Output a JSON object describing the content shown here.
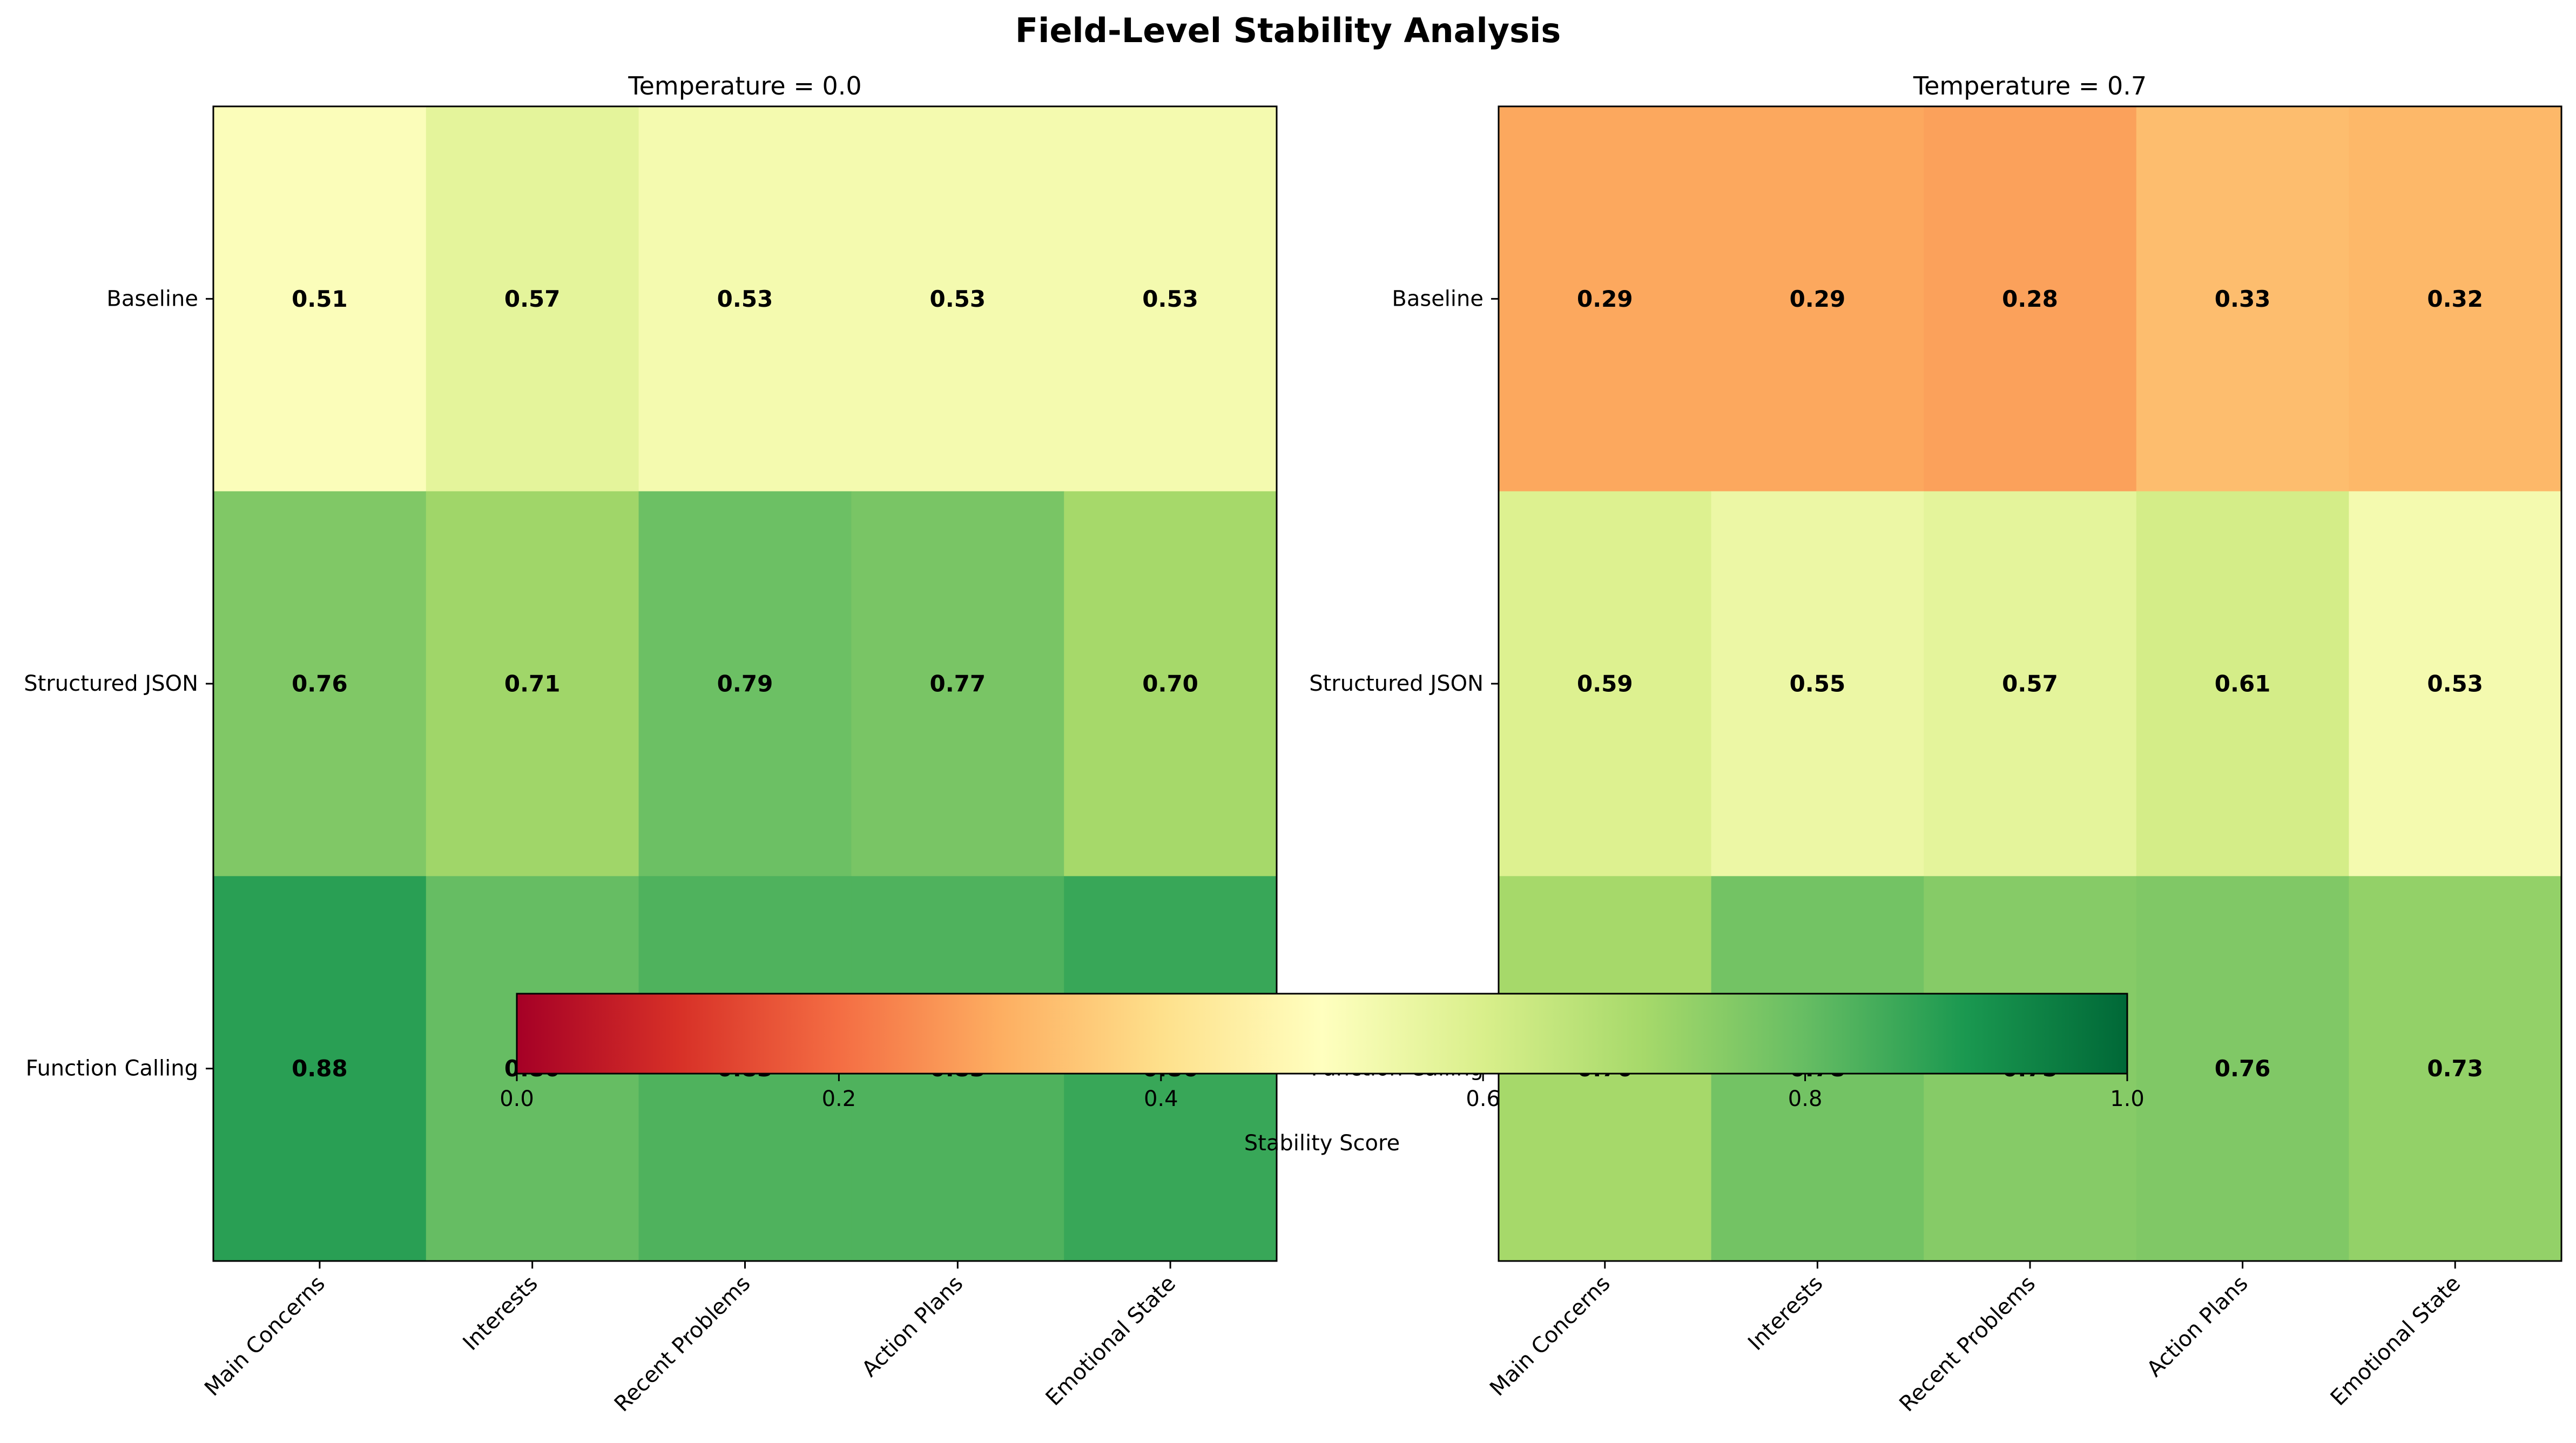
{
  "figure": {
    "title": "Field-Level Stability Analysis"
  },
  "chart_data": [
    {
      "type": "heatmap",
      "title": "Temperature = 0.0",
      "rows": [
        "Baseline",
        "Structured JSON",
        "Function Calling"
      ],
      "columns": [
        "Main Concerns",
        "Interests",
        "Recent Problems",
        "Action Plans",
        "Emotional State"
      ],
      "values": [
        [
          0.51,
          0.57,
          0.53,
          0.53,
          0.53
        ],
        [
          0.76,
          0.71,
          0.79,
          0.77,
          0.7
        ],
        [
          0.88,
          0.8,
          0.83,
          0.83,
          0.86
        ]
      ],
      "value_labels": [
        [
          "0.51",
          "0.57",
          "0.53",
          "0.53",
          "0.53"
        ],
        [
          "0.76",
          "0.71",
          "0.79",
          "0.77",
          "0.70"
        ],
        [
          "0.88",
          "0.80",
          "0.83",
          "0.83",
          "0.86"
        ]
      ],
      "vmin": 0.0,
      "vmax": 1.0
    },
    {
      "type": "heatmap",
      "title": "Temperature = 0.7",
      "rows": [
        "Baseline",
        "Structured JSON",
        "Function Calling"
      ],
      "columns": [
        "Main Concerns",
        "Interests",
        "Recent Problems",
        "Action Plans",
        "Emotional State"
      ],
      "values": [
        [
          0.29,
          0.29,
          0.28,
          0.33,
          0.32
        ],
        [
          0.59,
          0.55,
          0.57,
          0.61,
          0.53
        ],
        [
          0.7,
          0.78,
          0.75,
          0.76,
          0.73
        ]
      ],
      "value_labels": [
        [
          "0.29",
          "0.29",
          "0.28",
          "0.33",
          "0.32"
        ],
        [
          "0.59",
          "0.55",
          "0.57",
          "0.61",
          "0.53"
        ],
        [
          "0.70",
          "0.78",
          "0.75",
          "0.76",
          "0.73"
        ]
      ],
      "vmin": 0.0,
      "vmax": 1.0
    }
  ],
  "colorbar": {
    "label": "Stability Score",
    "ticks": [
      0.0,
      0.2,
      0.4,
      0.6,
      0.8,
      1.0
    ],
    "tick_labels": [
      "0.0",
      "0.2",
      "0.4",
      "0.6",
      "0.8",
      "1.0"
    ],
    "colormap": "RdYlGn",
    "colormap_stops": [
      "#a50026",
      "#d73027",
      "#f46d43",
      "#fdae61",
      "#fee08b",
      "#ffffbf",
      "#d9ef8b",
      "#a6d96a",
      "#66bd63",
      "#1a9850",
      "#006837"
    ]
  }
}
